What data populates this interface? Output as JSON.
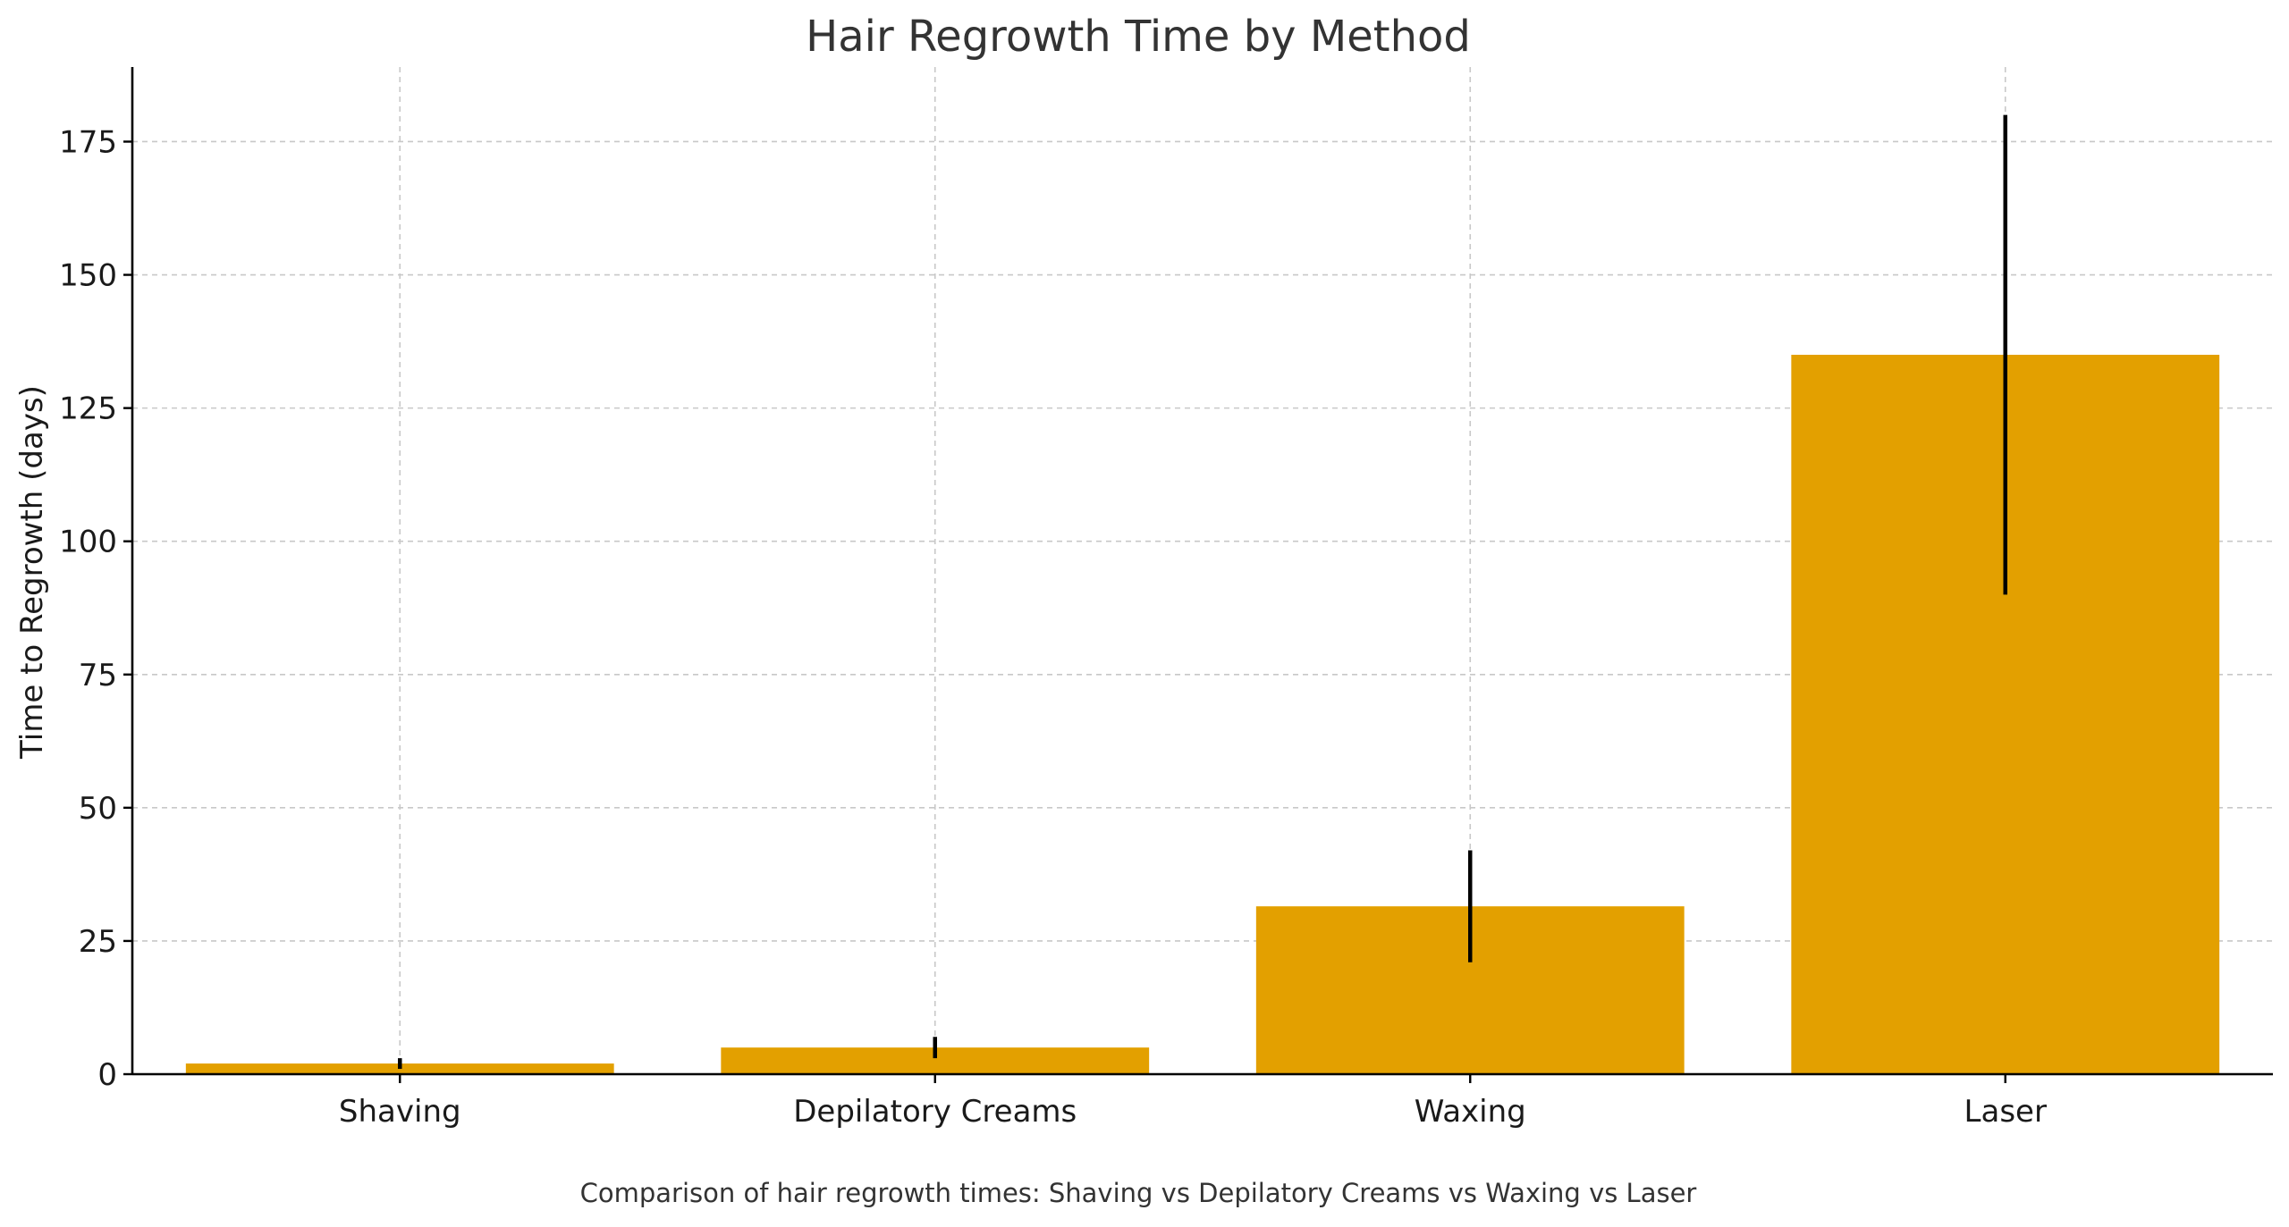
{
  "chart_data": {
    "type": "bar",
    "title": "Hair Regrowth Time by Method",
    "xlabel": "",
    "ylabel": "Time to Regrowth (days)",
    "caption": "Comparison of hair regrowth times: Shaving vs Depilatory Creams vs Waxing vs Laser",
    "categories": [
      "Shaving",
      "Depilatory Creams",
      "Waxing",
      "Laser"
    ],
    "values": [
      2,
      5,
      31.5,
      135
    ],
    "error_low": [
      1,
      3,
      21,
      90
    ],
    "error_high": [
      3,
      7,
      42,
      180
    ],
    "ylim": [
      0,
      189
    ],
    "yticks": [
      0,
      25,
      50,
      75,
      100,
      125,
      150,
      175
    ],
    "grid": true,
    "bar_color": "#E3A000",
    "error_color": "#000000"
  }
}
